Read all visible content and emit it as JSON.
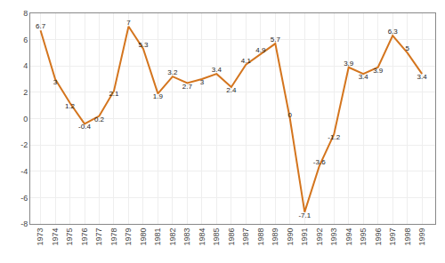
{
  "chart_data": {
    "type": "line",
    "x": [
      1973,
      1974,
      1975,
      1976,
      1977,
      1978,
      1979,
      1980,
      1981,
      1982,
      1983,
      1984,
      1985,
      1986,
      1987,
      1988,
      1989,
      1990,
      1991,
      1992,
      1993,
      1994,
      1995,
      1996,
      1997,
      1998,
      1999
    ],
    "values": [
      6.7,
      3.0,
      1.2,
      -0.4,
      0.2,
      2.1,
      7.0,
      5.3,
      1.9,
      3.2,
      2.7,
      3.0,
      3.4,
      2.4,
      4.1,
      4.9,
      5.7,
      0.0,
      -7.1,
      -3.6,
      -1.2,
      3.9,
      3.4,
      3.9,
      6.3,
      5.0,
      3.4
    ],
    "color": "#D4751E",
    "xlim": [
      1972.3,
      1999.9
    ],
    "xticks": [
      1973,
      1974,
      1975,
      1976,
      1977,
      1978,
      1979,
      1980,
      1981,
      1982,
      1983,
      1984,
      1985,
      1986,
      1987,
      1988,
      1989,
      1990,
      1991,
      1992,
      1993,
      1994,
      1995,
      1996,
      1997,
      1998,
      1999
    ],
    "ylim": [
      -8,
      8
    ],
    "yticks": [
      -8,
      -6,
      -4,
      -2,
      0,
      2,
      4,
      6,
      8
    ],
    "grid": true,
    "data_labels": true
  }
}
